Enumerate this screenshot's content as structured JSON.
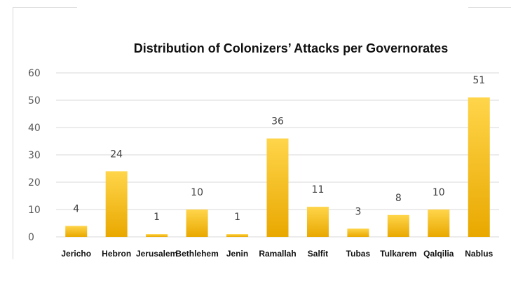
{
  "chart_data": {
    "type": "bar",
    "title": "Distribution of Colonizers’ Attacks per Governorates",
    "xlabel": "",
    "ylabel": "",
    "categories": [
      "Jericho",
      "Hebron",
      "Jerusalem",
      "Bethlehem",
      "Jenin",
      "Ramallah",
      "Salfit",
      "Tubas",
      "Tulkarem",
      "Qalqilia",
      "Nablus"
    ],
    "values": [
      4,
      24,
      1,
      10,
      1,
      36,
      11,
      3,
      8,
      10,
      51
    ],
    "ylim": [
      0,
      60
    ],
    "yticks": [
      0,
      10,
      20,
      30,
      40,
      50,
      60
    ],
    "grid": true,
    "legend": "none",
    "colors": {
      "bar_top": "#ffd54a",
      "bar_bottom": "#e9a800",
      "grid": "#d9d9d9"
    }
  }
}
